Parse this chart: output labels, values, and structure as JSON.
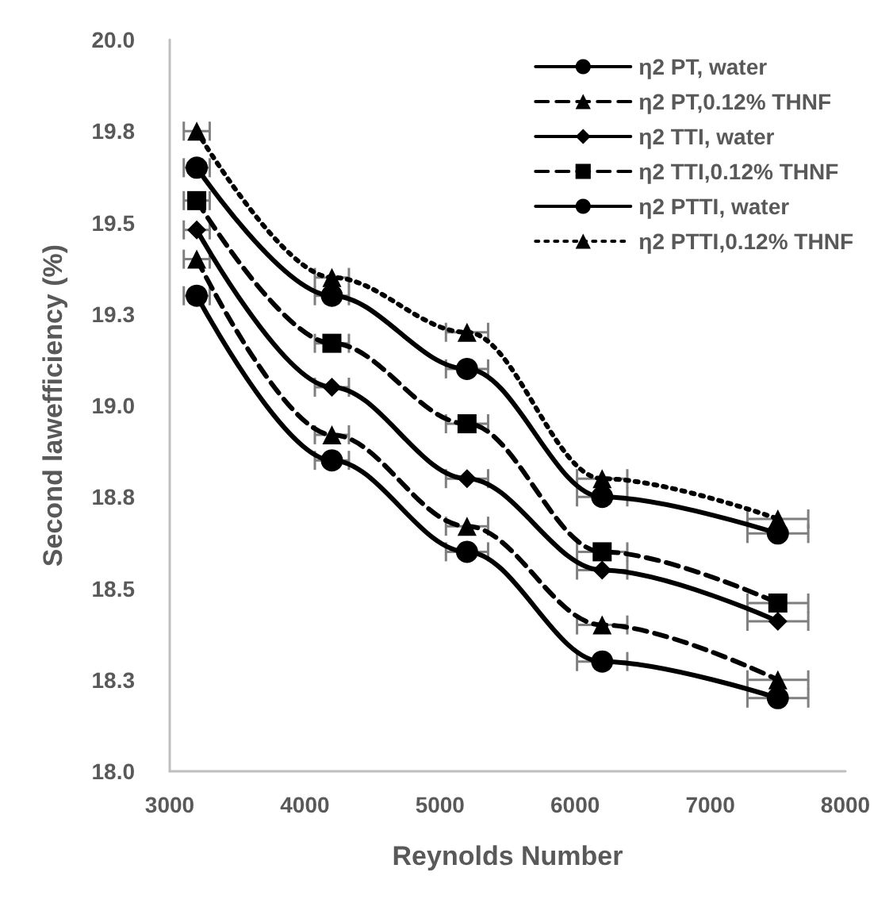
{
  "chart_data": {
    "type": "line",
    "xlabel": "Reynolds Number",
    "ylabel": "Second lawefficiency (%)",
    "x": [
      3200,
      4200,
      5200,
      6200,
      7500
    ],
    "xlim": [
      3000,
      8000
    ],
    "xticks": [
      3000,
      4000,
      5000,
      6000,
      7000,
      8000
    ],
    "ylim": [
      18,
      20
    ],
    "yticks": [
      {
        "value": 18,
        "label": "18.0"
      },
      {
        "value": 18.25,
        "label": "18.3"
      },
      {
        "value": 18.5,
        "label": "18.5"
      },
      {
        "value": 18.75,
        "label": "18.8"
      },
      {
        "value": 19,
        "label": "19.0"
      },
      {
        "value": 19.25,
        "label": "19.3"
      },
      {
        "value": 19.5,
        "label": "19.5"
      },
      {
        "value": 19.75,
        "label": "19.8"
      },
      {
        "value": 20,
        "label": "20.0"
      }
    ],
    "grid": false,
    "legend": "top right",
    "series": [
      {
        "name": "η2 PT, water",
        "color": "#000000",
        "marker": "circle",
        "line_style": "solid",
        "values": [
          19.3,
          18.85,
          18.6,
          18.3,
          18.2
        ],
        "xerrors": [
          96,
          126,
          156,
          186,
          225
        ]
      },
      {
        "name": "η2 PT,0.12% THNF",
        "color": "#000000",
        "marker": "triangle",
        "line_style": "dashed",
        "values": [
          19.4,
          18.92,
          18.67,
          18.4,
          18.25
        ],
        "xerrors": [
          96,
          126,
          156,
          186,
          225
        ]
      },
      {
        "name": "η2 TTI, water",
        "color": "#000000",
        "marker": "diamond",
        "line_style": "solid",
        "values": [
          19.48,
          19.05,
          18.8,
          18.55,
          18.41
        ],
        "xerrors": [
          96,
          126,
          156,
          186,
          225
        ]
      },
      {
        "name": "η2 TTI,0.12% THNF",
        "color": "#000000",
        "marker": "square",
        "line_style": "dashed",
        "values": [
          19.56,
          19.17,
          18.95,
          18.6,
          18.46
        ],
        "xerrors": [
          96,
          126,
          156,
          186,
          225
        ]
      },
      {
        "name": "η2 PTTI, water",
        "color": "#000000",
        "marker": "circle",
        "line_style": "solid",
        "values": [
          19.65,
          19.3,
          19.1,
          18.75,
          18.65
        ],
        "xerrors": [
          96,
          126,
          156,
          186,
          225
        ]
      },
      {
        "name": "η2 PTTI,0.12% THNF",
        "color": "#000000",
        "marker": "triangle",
        "line_style": "dotted",
        "values": [
          19.75,
          19.35,
          19.2,
          18.8,
          18.69
        ],
        "xerrors": [
          96,
          126,
          156,
          186,
          225
        ]
      }
    ]
  }
}
